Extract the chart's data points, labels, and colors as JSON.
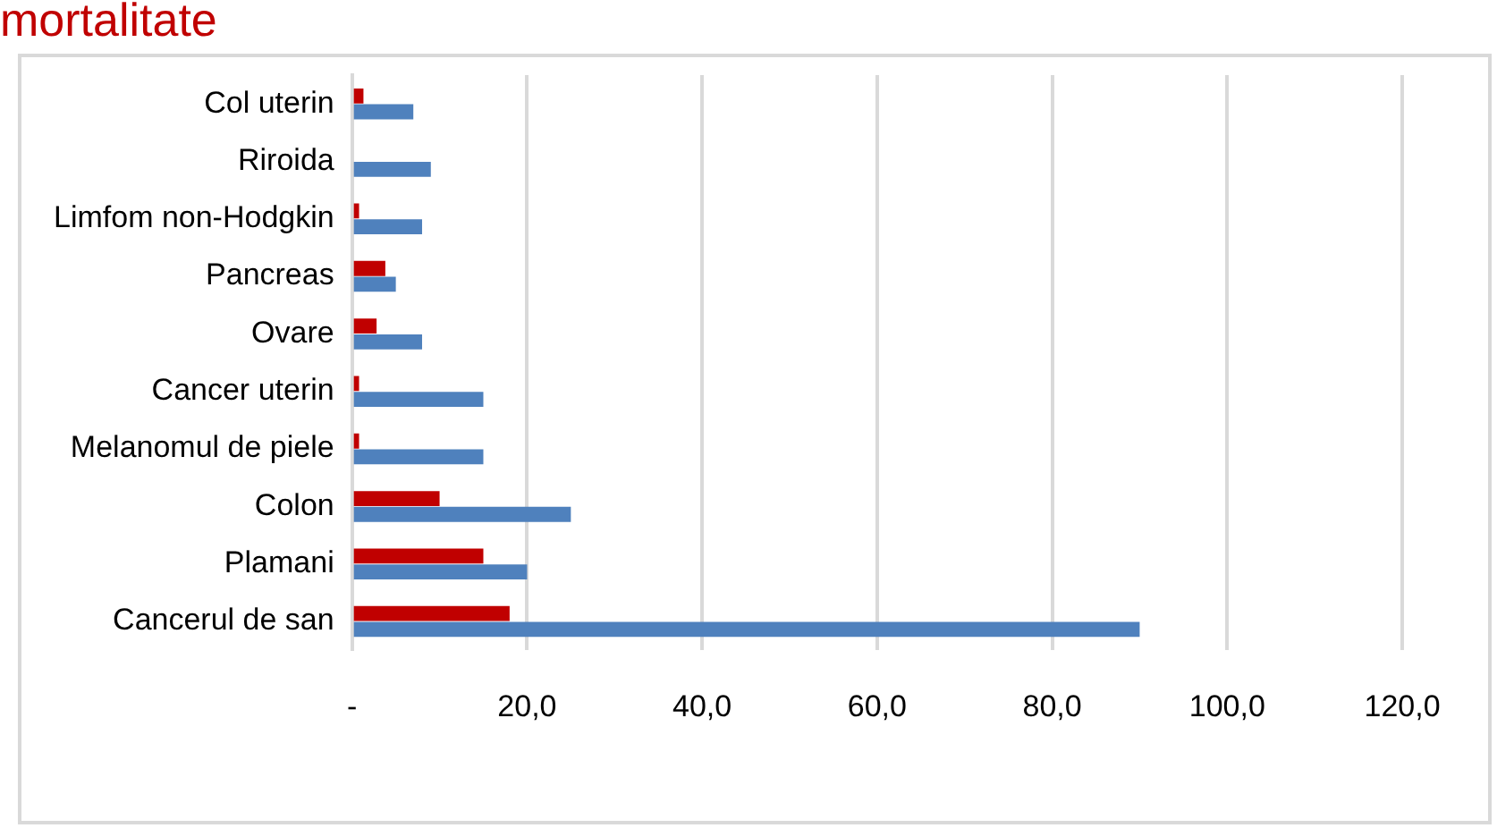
{
  "chart_data": {
    "type": "bar",
    "title": "mortalitate",
    "orientation": "horizontal",
    "categories": [
      "Col uterin",
      "Riroida",
      "Limfom non-Hodgkin",
      "Pancreas",
      "Ovare",
      "Cancer uterin",
      "Melanomul de piele",
      "Colon",
      "Plamani",
      "Cancerul de san"
    ],
    "series": [
      {
        "color": "#c00000",
        "values": [
          1.3,
          0,
          0.8,
          3.8,
          2.8,
          0.8,
          0.8,
          10,
          15,
          18
        ]
      },
      {
        "color": "#4f81bd",
        "values": [
          7,
          9,
          8,
          5,
          8,
          15,
          15,
          25,
          20,
          90
        ]
      }
    ],
    "xlim": [
      0,
      120
    ],
    "xticks": [
      {
        "value": 0,
        "label": "-"
      },
      {
        "value": 20,
        "label": "20,0"
      },
      {
        "value": 40,
        "label": "40,0"
      },
      {
        "value": 60,
        "label": "60,0"
      },
      {
        "value": 80,
        "label": "80,0"
      },
      {
        "value": 100,
        "label": "100,0"
      },
      {
        "value": 120,
        "label": "120,0"
      }
    ],
    "grid": "x"
  }
}
